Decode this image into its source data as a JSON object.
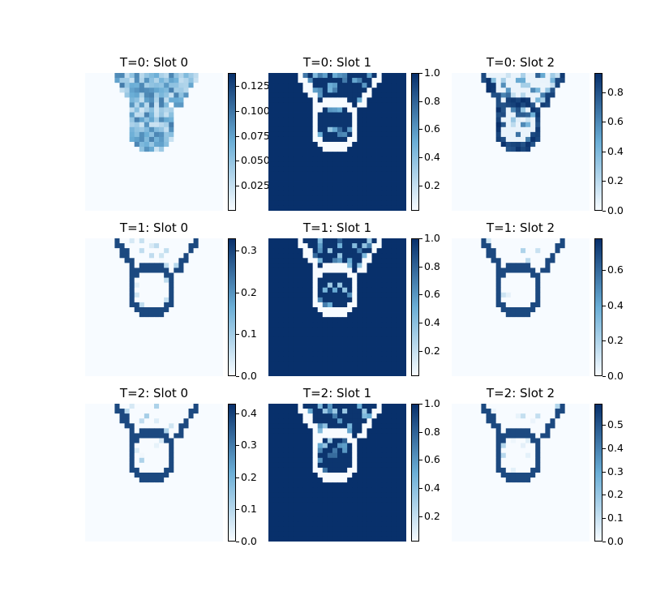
{
  "figure": {
    "colormap": {
      "name": "Blues",
      "light": "#f7fbff",
      "dark": "#08306b"
    }
  },
  "chart_data": [
    {
      "type": "heatmap",
      "title": "T=0: Slot 0",
      "clim": [
        0.0,
        0.138
      ],
      "colorbar_ticks": [
        "0.025",
        "0.050",
        "0.075",
        "0.100",
        "0.125"
      ],
      "colorbar_values": [
        0.025,
        0.05,
        0.075,
        0.1,
        0.125
      ]
    },
    {
      "type": "heatmap",
      "title": "T=0: Slot 1",
      "clim": [
        0.02,
        1.0
      ],
      "colorbar_ticks": [
        "0.2",
        "0.4",
        "0.6",
        "0.8",
        "1.0"
      ],
      "colorbar_values": [
        0.2,
        0.4,
        0.6,
        0.8,
        1.0
      ]
    },
    {
      "type": "heatmap",
      "title": "T=0: Slot 2",
      "clim": [
        0.0,
        0.93
      ],
      "colorbar_ticks": [
        "0.0",
        "0.2",
        "0.4",
        "0.6",
        "0.8"
      ],
      "colorbar_values": [
        0.0,
        0.2,
        0.4,
        0.6,
        0.8
      ]
    },
    {
      "type": "heatmap",
      "title": "T=1: Slot 0",
      "clim": [
        0.0,
        0.33
      ],
      "colorbar_ticks": [
        "0.0",
        "0.1",
        "0.2",
        "0.3"
      ],
      "colorbar_values": [
        0.0,
        0.1,
        0.2,
        0.3
      ]
    },
    {
      "type": "heatmap",
      "title": "T=1: Slot 1",
      "clim": [
        0.02,
        1.0
      ],
      "colorbar_ticks": [
        "0.2",
        "0.4",
        "0.6",
        "0.8",
        "1.0"
      ],
      "colorbar_values": [
        0.2,
        0.4,
        0.6,
        0.8,
        1.0
      ]
    },
    {
      "type": "heatmap",
      "title": "T=1: Slot 2",
      "clim": [
        0.0,
        0.78
      ],
      "colorbar_ticks": [
        "0.0",
        "0.2",
        "0.4",
        "0.6"
      ],
      "colorbar_values": [
        0.0,
        0.2,
        0.4,
        0.6
      ]
    },
    {
      "type": "heatmap",
      "title": "T=2: Slot 0",
      "clim": [
        0.0,
        0.43
      ],
      "colorbar_ticks": [
        "0.0",
        "0.1",
        "0.2",
        "0.3",
        "0.4"
      ],
      "colorbar_values": [
        0.0,
        0.1,
        0.2,
        0.3,
        0.4
      ]
    },
    {
      "type": "heatmap",
      "title": "T=2: Slot 1",
      "clim": [
        0.02,
        1.0
      ],
      "colorbar_ticks": [
        "0.2",
        "0.4",
        "0.6",
        "0.8",
        "1.0"
      ],
      "colorbar_values": [
        0.2,
        0.4,
        0.6,
        0.8,
        1.0
      ]
    },
    {
      "type": "heatmap",
      "title": "T=2: Slot 2",
      "clim": [
        0.0,
        0.59
      ],
      "colorbar_ticks": [
        "0.0",
        "0.1",
        "0.2",
        "0.3",
        "0.4",
        "0.5"
      ],
      "colorbar_values": [
        0.0,
        0.1,
        0.2,
        0.3,
        0.4,
        0.5
      ]
    }
  ]
}
